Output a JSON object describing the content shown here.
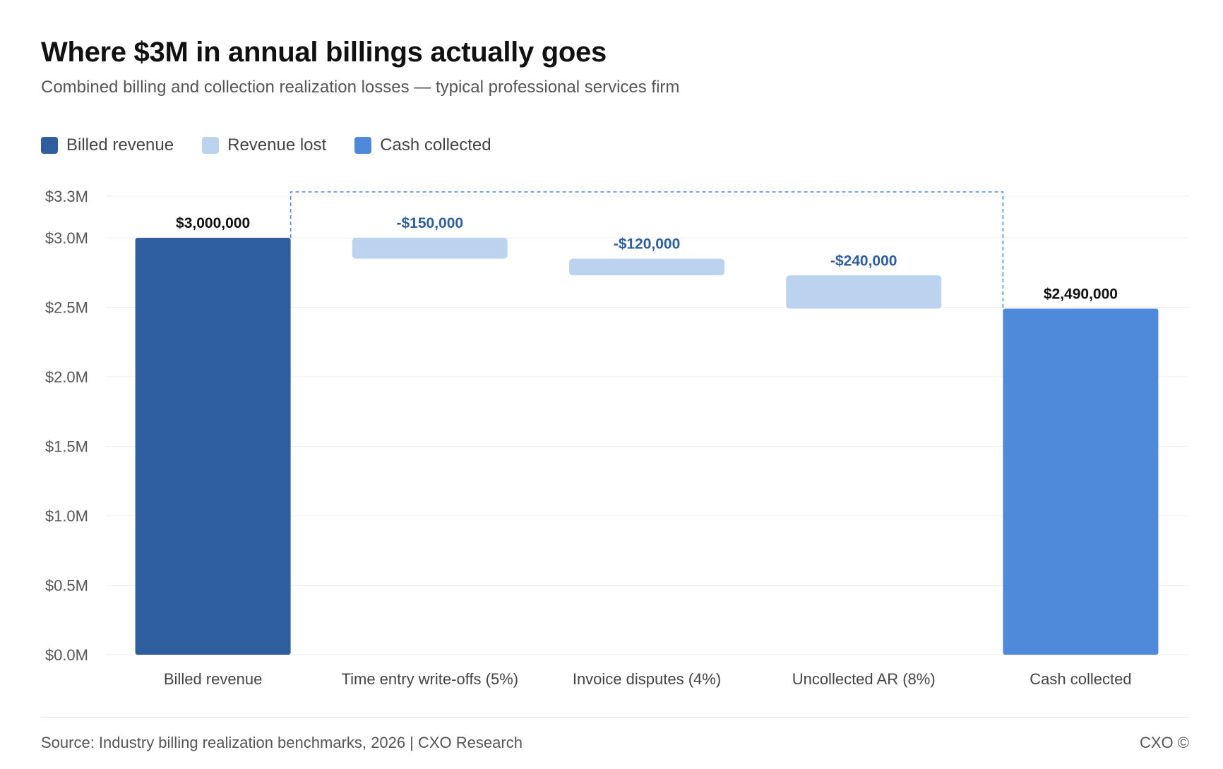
{
  "header": {
    "title": "Where $3M in annual billings actually goes",
    "subtitle": "Combined billing and collection realization losses — typical professional services firm"
  },
  "legend": [
    {
      "label": "Billed revenue",
      "color": "#2e5e9e"
    },
    {
      "label": "Revenue lost",
      "color": "#bcd3f0"
    },
    {
      "label": "Cash collected",
      "color": "#4f89d9"
    }
  ],
  "footer": {
    "source": "Source: Industry billing realization benchmarks, 2026  |  CXO Research",
    "brand": "CXO ©"
  },
  "chart_data": {
    "type": "waterfall",
    "categories": [
      "Billed revenue",
      "Time entry write-offs (5%)",
      "Invoice disputes (4%)",
      "Uncollected AR (8%)",
      "Cash collected"
    ],
    "steps": [
      {
        "kind": "total",
        "start": 0,
        "end": 3000000,
        "label": "$3,000,000",
        "color": "#2e5e9e"
      },
      {
        "kind": "loss",
        "start": 3000000,
        "end": 2850000,
        "label": "-$150,000",
        "color": "#bcd3f0"
      },
      {
        "kind": "loss",
        "start": 2850000,
        "end": 2730000,
        "label": "-$120,000",
        "color": "#bcd3f0"
      },
      {
        "kind": "loss",
        "start": 2730000,
        "end": 2490000,
        "label": "-$240,000",
        "color": "#bcd3f0"
      },
      {
        "kind": "total",
        "start": 0,
        "end": 2490000,
        "label": "$2,490,000",
        "color": "#4f89d9"
      }
    ],
    "yticks": [
      {
        "value": 0,
        "label": "$0.0M"
      },
      {
        "value": 500000,
        "label": "$0.5M"
      },
      {
        "value": 1000000,
        "label": "$1.0M"
      },
      {
        "value": 1500000,
        "label": "$1.5M"
      },
      {
        "value": 2000000,
        "label": "$2.0M"
      },
      {
        "value": 2500000,
        "label": "$2.5M"
      },
      {
        "value": 3000000,
        "label": "$3.0M"
      },
      {
        "value": 3300000,
        "label": "$3.3M"
      }
    ],
    "ylim": [
      0,
      3300000
    ],
    "grid": true,
    "total_label_color": "#111111",
    "loss_label_color": "#2e5e9e",
    "bracket_color": "#4f89d9"
  }
}
